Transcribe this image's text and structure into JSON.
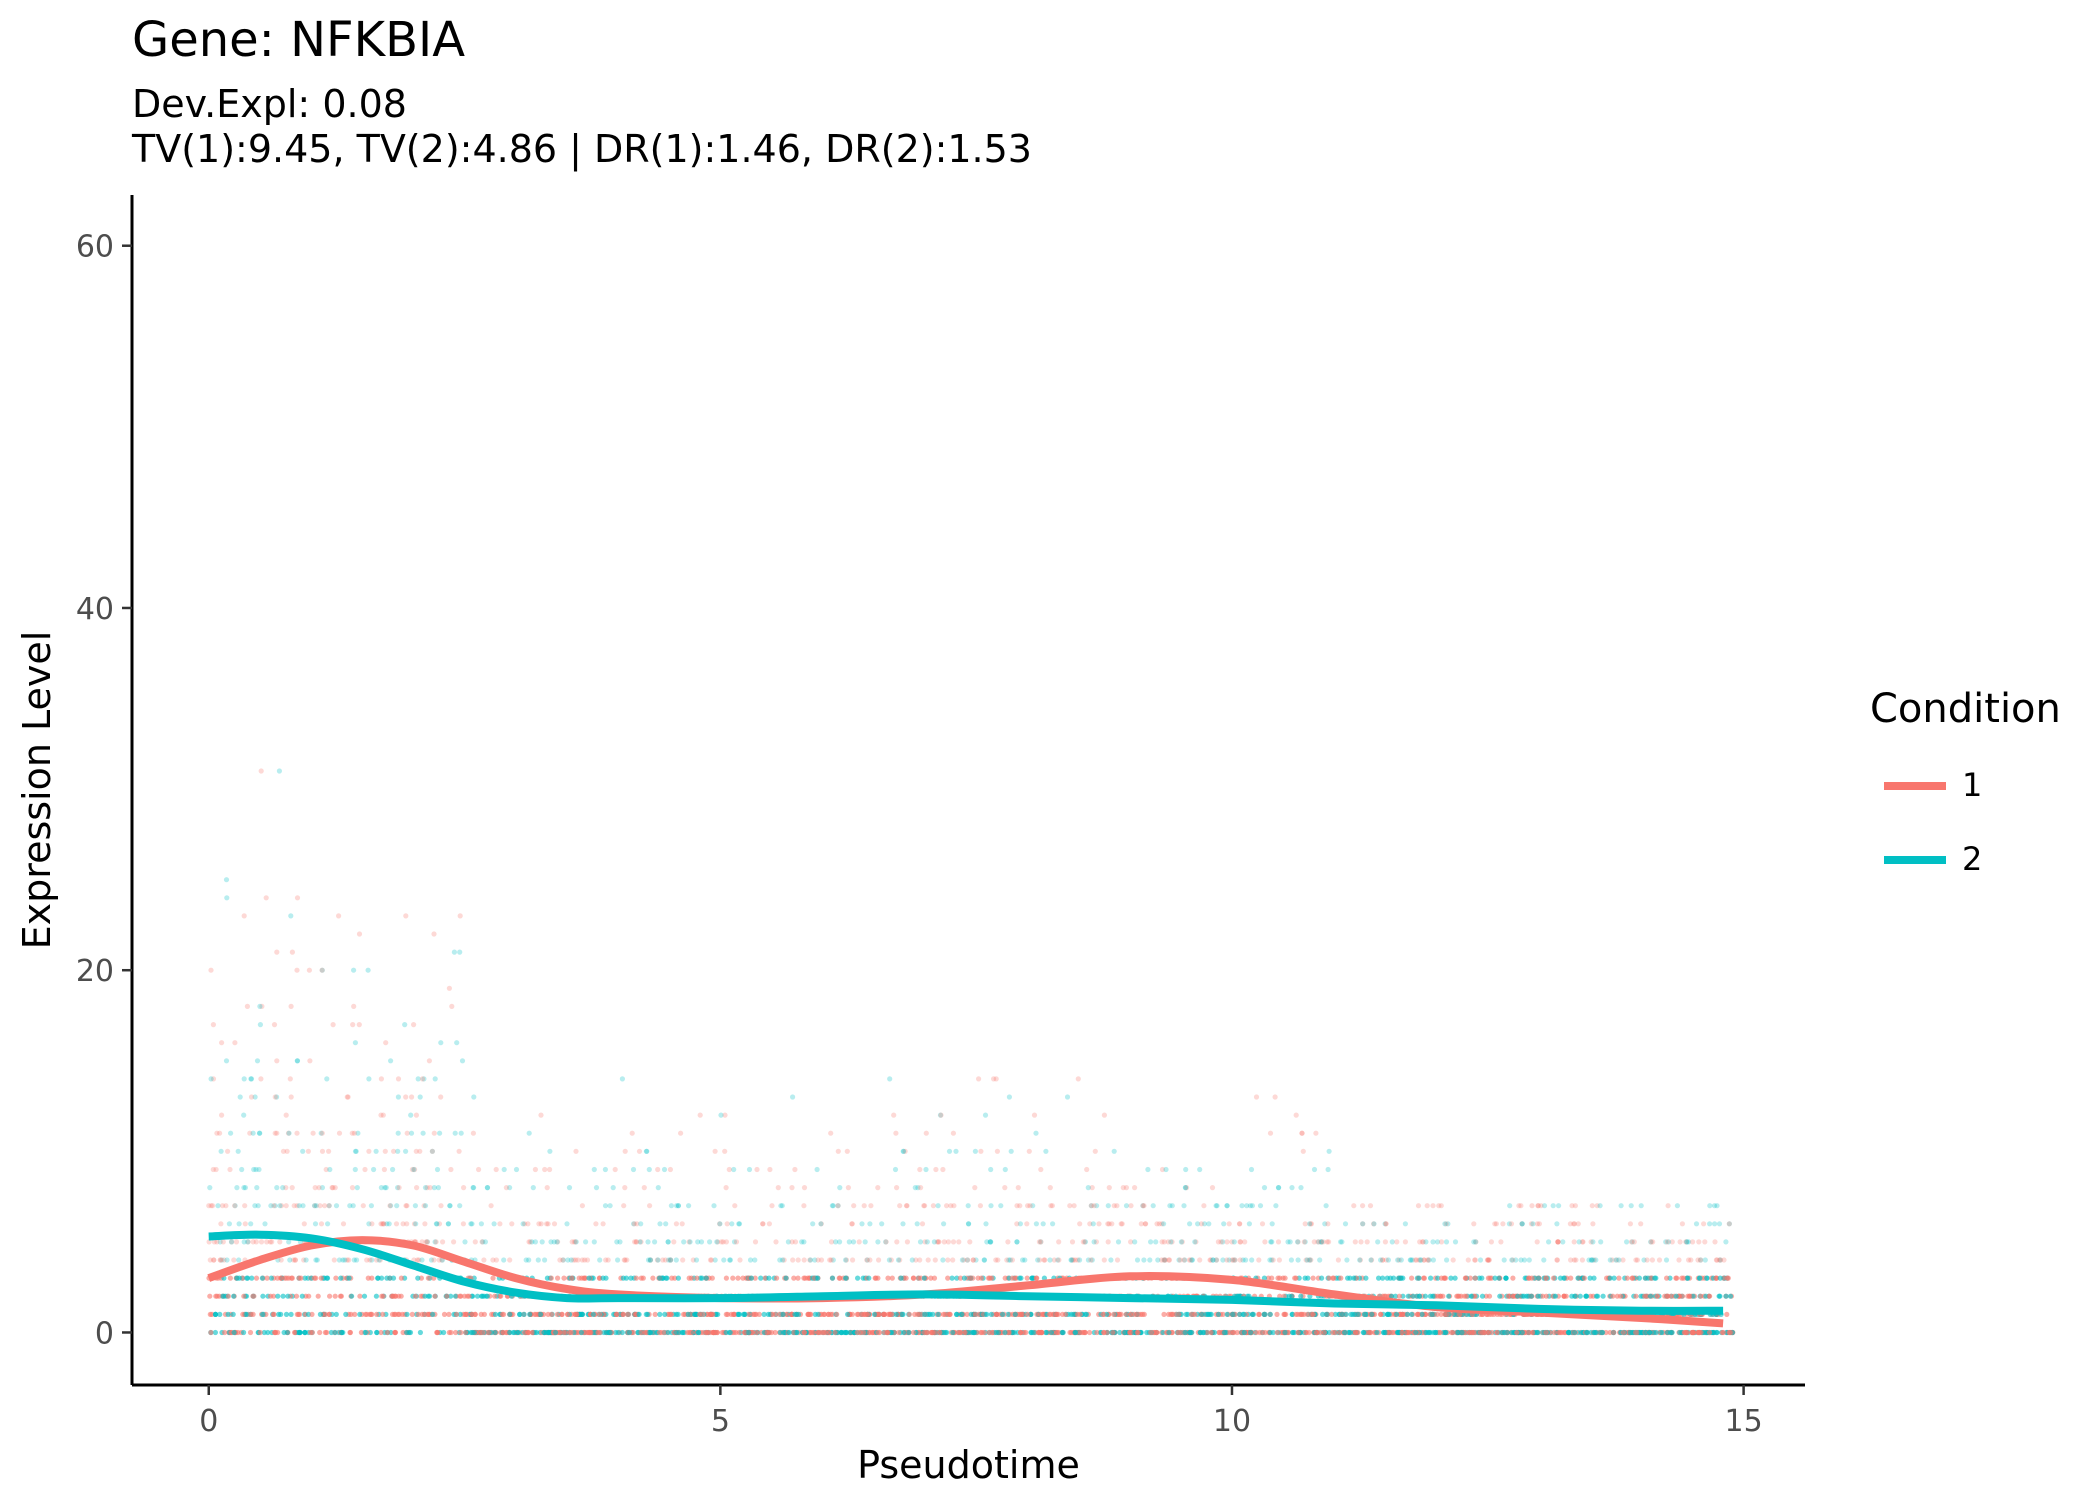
{
  "title": "Gene: NFKBIA",
  "subtitle_line1": "Dev.Expl: 0.08",
  "subtitle_line2": "TV(1):9.45, TV(2):4.86 | DR(1):1.46, DR(2):1.53",
  "chart_data": {
    "type": "scatter",
    "xlabel": "Pseudotime",
    "ylabel": "Expression Level",
    "xlim": [
      -0.75,
      15.6
    ],
    "ylim": [
      -2.9,
      62.8
    ],
    "x_ticks": [
      0,
      5,
      10,
      15
    ],
    "y_ticks": [
      0,
      20,
      40,
      60
    ],
    "grid": false,
    "legend": {
      "title": "Condition",
      "placement": "right"
    },
    "colors": {
      "1": "#F8766D",
      "2": "#00BFC4"
    },
    "series": [
      {
        "name": "1",
        "fit_x": [
          0,
          0.5,
          1.0,
          1.5,
          2.0,
          2.5,
          3.0,
          3.5,
          4.0,
          5.0,
          6.0,
          7.0,
          8.0,
          9.0,
          10.0,
          11.0,
          12.0,
          13.0,
          14.0,
          14.8
        ],
        "fit_y": [
          3.0,
          4.0,
          4.8,
          5.1,
          4.8,
          3.9,
          3.0,
          2.4,
          2.1,
          1.9,
          1.9,
          2.1,
          2.6,
          3.1,
          2.9,
          2.1,
          1.4,
          1.1,
          0.8,
          0.5
        ]
      },
      {
        "name": "2",
        "fit_x": [
          0,
          0.5,
          1.0,
          1.5,
          2.0,
          2.5,
          3.0,
          3.5,
          4.0,
          5.0,
          6.0,
          7.0,
          8.0,
          9.0,
          10.0,
          11.0,
          12.0,
          13.0,
          14.0,
          14.8
        ],
        "fit_y": [
          5.3,
          5.4,
          5.2,
          4.6,
          3.7,
          2.8,
          2.2,
          1.9,
          1.9,
          1.9,
          2.0,
          2.1,
          2.0,
          1.9,
          1.8,
          1.6,
          1.5,
          1.3,
          1.2,
          1.2
        ]
      }
    ]
  }
}
